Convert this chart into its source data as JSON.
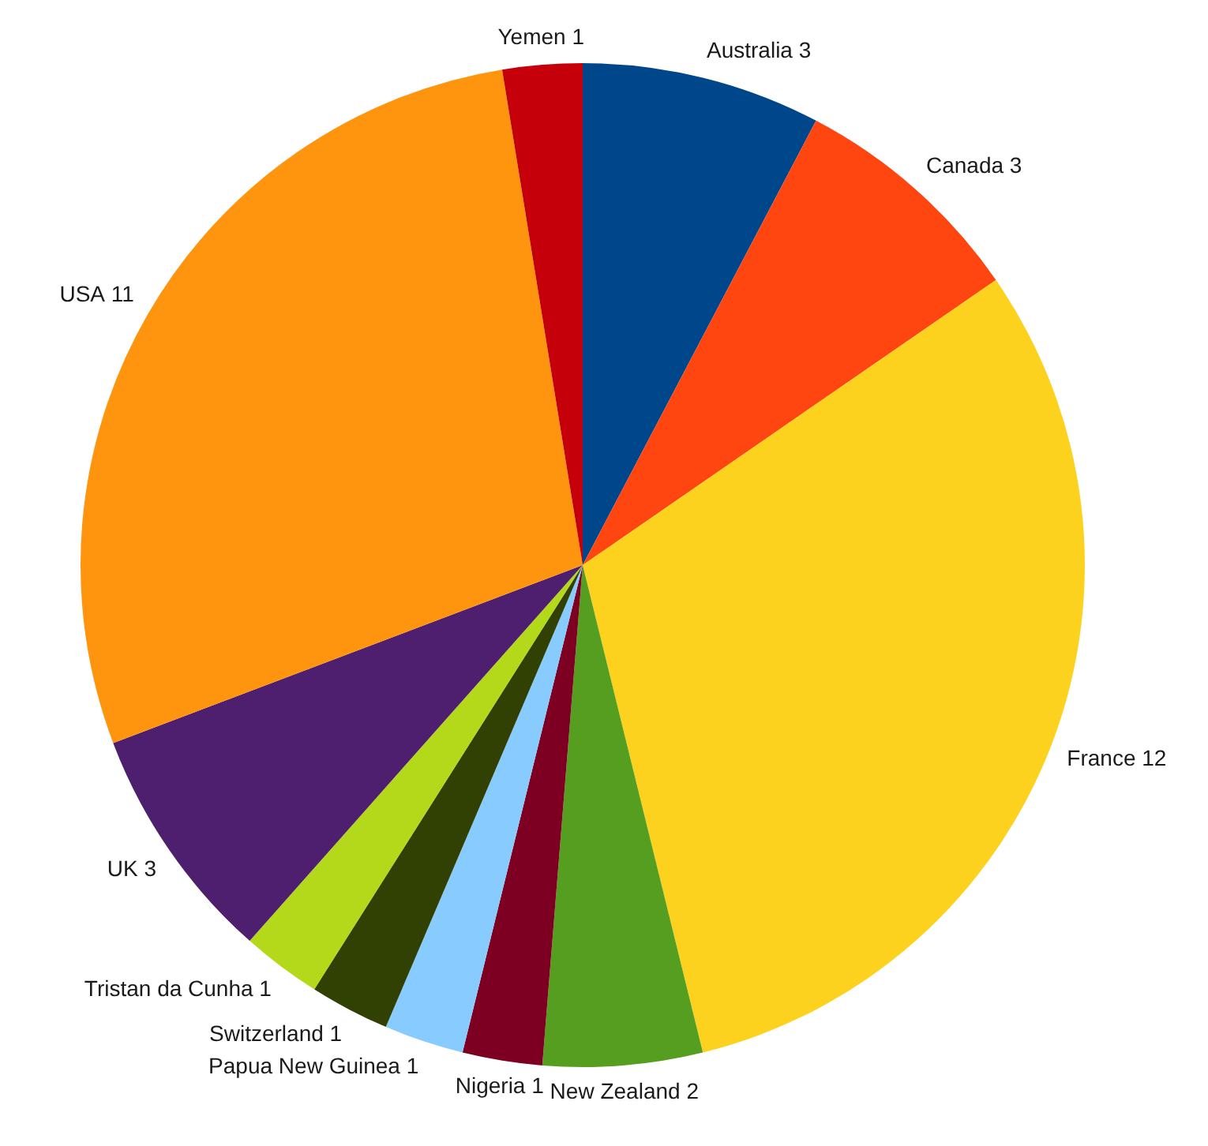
{
  "chart_data": {
    "type": "pie",
    "categories": [
      "Australia",
      "Canada",
      "France",
      "New Zealand",
      "Nigeria",
      "Papua New Guinea",
      "Switzerland",
      "Tristan da Cunha",
      "UK",
      "USA",
      "Yemen"
    ],
    "values": [
      3,
      3,
      12,
      2,
      1,
      1,
      1,
      1,
      3,
      11,
      1
    ],
    "colors": [
      "#00468b",
      "#ff4510",
      "#fdd21e",
      "#559e20",
      "#7d0022",
      "#87cbff",
      "#314003",
      "#b3d91a",
      "#4d1f6e",
      "#ff950e",
      "#c5000b"
    ],
    "data_labels": true,
    "legend": false
  }
}
